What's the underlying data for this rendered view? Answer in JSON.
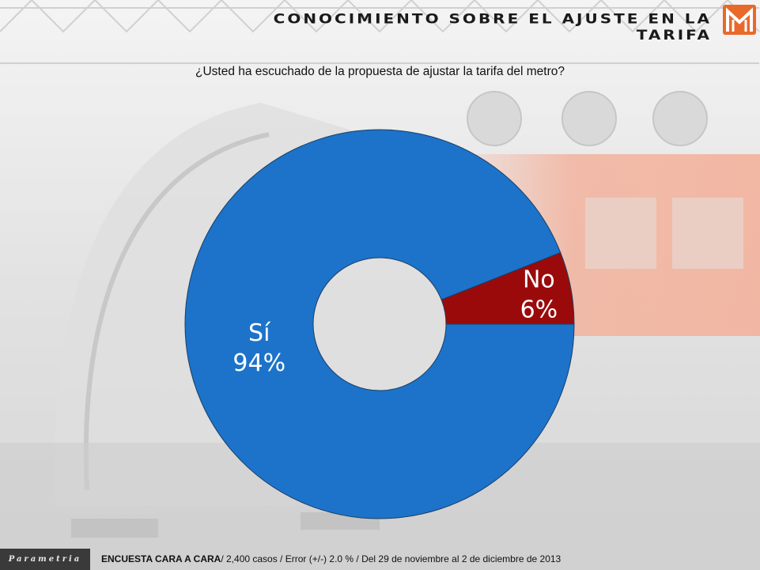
{
  "header": {
    "title": "CONOCIMIENTO SOBRE EL AJUSTE EN LA TARIFA",
    "logo_icon": "metro-logo-icon",
    "brand_color": "#e8692a"
  },
  "chart_data": {
    "type": "pie",
    "donut": true,
    "title": "¿Usted ha escuchado de la propuesta de ajustar la tarifa del metro?",
    "categories": [
      "No",
      "Sí"
    ],
    "values": [
      6,
      94
    ],
    "value_labels": [
      "6%",
      "94%"
    ],
    "colors": [
      "#9b0a0a",
      "#1c73c9"
    ]
  },
  "footer": {
    "brand": "Parametria",
    "method": "ENCUESTA CARA A CARA",
    "details": "/ 2,400 casos / Error (+/-) 2.0 % / Del 29 de noviembre al 2 de diciembre de 2013"
  }
}
